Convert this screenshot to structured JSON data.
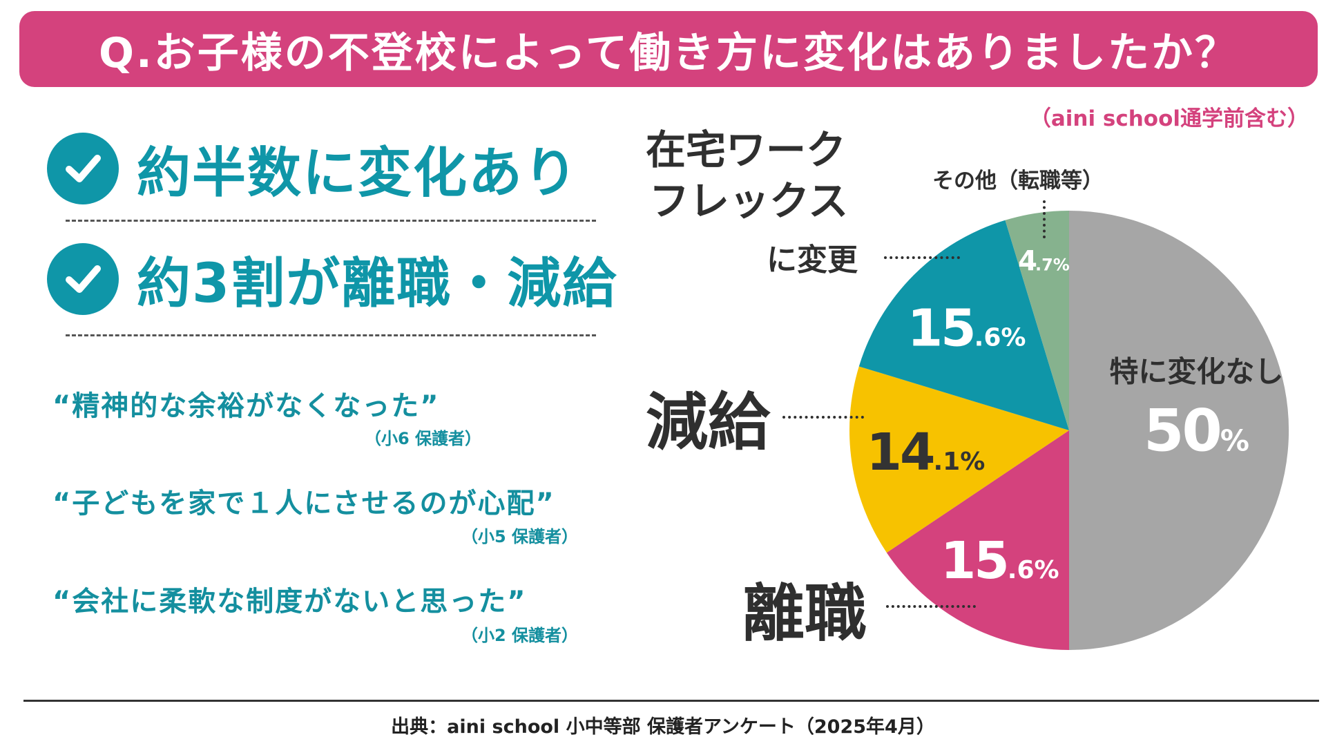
{
  "title": "Q.お子様の不登校によって働き方に変化はありましたか？",
  "note": "（aini school通学前含む）",
  "headlines": [
    {
      "text": "約半数に変化あり"
    },
    {
      "text": "約3割が離職・減給"
    }
  ],
  "quotes": [
    {
      "text": "“精神的な余裕がなくなった”",
      "attribution": "（小6 保護者）"
    },
    {
      "text": "“子どもを家で１人にさせるのが心配”",
      "attribution": "（小5 保護者）"
    },
    {
      "text": "“会社に柔軟な制度がないと思った”",
      "attribution": "（小2 保護者）"
    }
  ],
  "labels": {
    "remote_line1": "在宅ワーク",
    "remote_line2": "フレックス",
    "remote_line3": "に変更",
    "other": "その他（転職等）",
    "pay_cut": "減給",
    "resign": "離職"
  },
  "colors": {
    "accent": "#d4427d",
    "teal": "#0f96a8",
    "gray": "#a6a6a6",
    "yellow": "#f7c200",
    "green": "#86b28e"
  },
  "chart_data": {
    "type": "pie",
    "title": "Q.お子様の不登校によって働き方に変化はありましたか？",
    "slices": [
      {
        "label": "特に変化なし",
        "value": 50,
        "int": "50",
        "dec": "",
        "unit": "%",
        "color": "#a6a6a6"
      },
      {
        "label": "離職",
        "value": 15.6,
        "int": "15",
        "dec": ".6",
        "unit": "%",
        "color": "#d4427d"
      },
      {
        "label": "減給",
        "value": 14.1,
        "int": "14",
        "dec": ".1",
        "unit": "%",
        "color": "#f7c200"
      },
      {
        "label": "在宅ワーク・フレックスに変更",
        "value": 15.6,
        "int": "15",
        "dec": ".6",
        "unit": "%",
        "color": "#0f96a8"
      },
      {
        "label": "その他（転職等）",
        "value": 4.7,
        "int": "4",
        "dec": ".7",
        "unit": "%",
        "color": "#86b28e"
      }
    ]
  },
  "footer": "出典：aini school 小中等部 保護者アンケート（2025年4月）"
}
